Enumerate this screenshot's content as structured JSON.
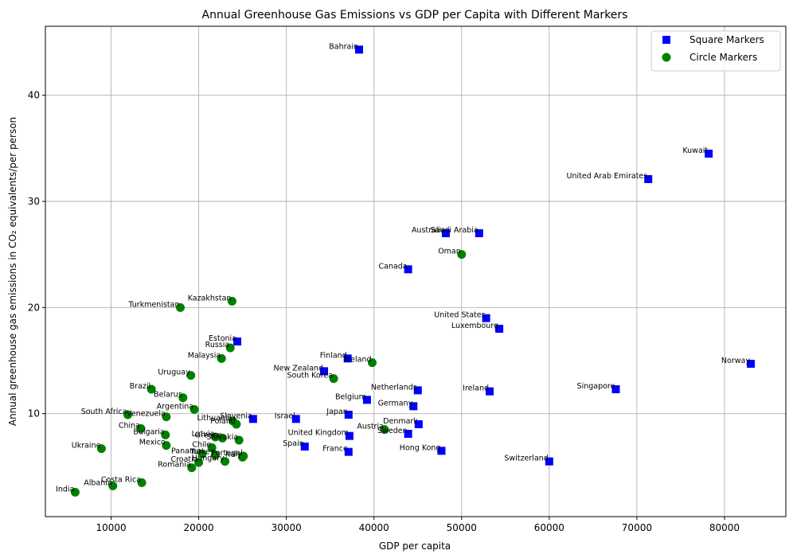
{
  "chart_data": {
    "type": "scatter",
    "title": "Annual Greenhouse Gas Emissions vs GDP per Capita with Different Markers",
    "xlabel": "GDP per capita",
    "ylabel": "Annual greenhouse gas emissions in CO₂ equivalents/per person",
    "xlim": [
      2500,
      87000
    ],
    "ylim": [
      0.3,
      46.5
    ],
    "x_ticks": [
      10000,
      20000,
      30000,
      40000,
      50000,
      60000,
      70000,
      80000
    ],
    "y_ticks": [
      10,
      20,
      30,
      40
    ],
    "grid": true,
    "legend_position": "top-right",
    "series": [
      {
        "name": "Square Markers",
        "marker": "square",
        "color": "#0000ff",
        "points": [
          {
            "label": "Bahrain",
            "x": 38300,
            "y": 44.3
          },
          {
            "label": "Kuwait",
            "x": 78200,
            "y": 34.5
          },
          {
            "label": "United Arab Emirates",
            "x": 71300,
            "y": 32.1
          },
          {
            "label": "Australia",
            "x": 48200,
            "y": 27.0
          },
          {
            "label": "Saudi Arabia",
            "x": 52000,
            "y": 27.0
          },
          {
            "label": "Canada",
            "x": 43900,
            "y": 23.6
          },
          {
            "label": "United States",
            "x": 52800,
            "y": 19.0
          },
          {
            "label": "Luxembourg",
            "x": 54300,
            "y": 18.0
          },
          {
            "label": "Estonia",
            "x": 24400,
            "y": 16.8
          },
          {
            "label": "Finland",
            "x": 37000,
            "y": 15.2
          },
          {
            "label": "Norway",
            "x": 83000,
            "y": 14.7
          },
          {
            "label": "New Zealand",
            "x": 34300,
            "y": 14.0
          },
          {
            "label": "Singapore",
            "x": 67600,
            "y": 12.3
          },
          {
            "label": "Netherlands",
            "x": 45000,
            "y": 12.2
          },
          {
            "label": "Ireland",
            "x": 53200,
            "y": 12.1
          },
          {
            "label": "Belgium",
            "x": 39200,
            "y": 11.3
          },
          {
            "label": "Germany",
            "x": 44500,
            "y": 10.7
          },
          {
            "label": "Japan",
            "x": 37100,
            "y": 9.9
          },
          {
            "label": "Slovenia",
            "x": 26200,
            "y": 9.5
          },
          {
            "label": "Israel",
            "x": 31100,
            "y": 9.5
          },
          {
            "label": "Denmark",
            "x": 45100,
            "y": 9.0
          },
          {
            "label": "Sweden",
            "x": 43900,
            "y": 8.1
          },
          {
            "label": "United Kingdom",
            "x": 37200,
            "y": 7.9
          },
          {
            "label": "Spain",
            "x": 32100,
            "y": 6.9
          },
          {
            "label": "France",
            "x": 37100,
            "y": 6.4
          },
          {
            "label": "Hong Kong",
            "x": 47700,
            "y": 6.5
          },
          {
            "label": "Switzerland",
            "x": 60000,
            "y": 5.5
          }
        ]
      },
      {
        "name": "Circle Markers",
        "marker": "circle",
        "color": "#008000",
        "points": [
          {
            "label": "Oman",
            "x": 50000,
            "y": 25.0
          },
          {
            "label": "Kazakhstan",
            "x": 23800,
            "y": 20.6
          },
          {
            "label": "Turkmenistan",
            "x": 17900,
            "y": 20.0
          },
          {
            "label": "Russia",
            "x": 23600,
            "y": 16.2
          },
          {
            "label": "Malaysia",
            "x": 22600,
            "y": 15.2
          },
          {
            "label": "Iceland",
            "x": 39800,
            "y": 14.8
          },
          {
            "label": "Uruguay",
            "x": 19100,
            "y": 13.6
          },
          {
            "label": "South Korea",
            "x": 35400,
            "y": 13.3
          },
          {
            "label": "Brazil",
            "x": 14600,
            "y": 12.3
          },
          {
            "label": "Belarus",
            "x": 18200,
            "y": 11.5
          },
          {
            "label": "Argentina",
            "x": 19500,
            "y": 10.4
          },
          {
            "label": "South Africa",
            "x": 11900,
            "y": 9.9
          },
          {
            "label": "Venezuela",
            "x": 16300,
            "y": 9.7
          },
          {
            "label": "Lithuania",
            "x": 23900,
            "y": 9.3
          },
          {
            "label": "Poland",
            "x": 24300,
            "y": 9.0
          },
          {
            "label": "China",
            "x": 13400,
            "y": 8.6
          },
          {
            "label": "Austria",
            "x": 41200,
            "y": 8.5
          },
          {
            "label": "Bulgaria",
            "x": 16200,
            "y": 8.0
          },
          {
            "label": "Latvia",
            "x": 21900,
            "y": 7.8
          },
          {
            "label": "Greece",
            "x": 22700,
            "y": 7.7
          },
          {
            "label": "Slovakia",
            "x": 24600,
            "y": 7.5
          },
          {
            "label": "Mexico",
            "x": 16300,
            "y": 7.0
          },
          {
            "label": "Ukraine",
            "x": 8900,
            "y": 6.7
          },
          {
            "label": "Chile",
            "x": 21500,
            "y": 6.8
          },
          {
            "label": "Panama",
            "x": 20400,
            "y": 6.2
          },
          {
            "label": "Turkey",
            "x": 21900,
            "y": 6.1
          },
          {
            "label": "Portugal",
            "x": 25100,
            "y": 6.0
          },
          {
            "label": "Italy",
            "x": 25000,
            "y": 5.9
          },
          {
            "label": "Hungary",
            "x": 23000,
            "y": 5.5
          },
          {
            "label": "Croatia",
            "x": 20000,
            "y": 5.4
          },
          {
            "label": "Romania",
            "x": 19200,
            "y": 4.9
          },
          {
            "label": "Costa Rica",
            "x": 13500,
            "y": 3.5
          },
          {
            "label": "Albania",
            "x": 10200,
            "y": 3.2
          },
          {
            "label": "India",
            "x": 5900,
            "y": 2.6
          }
        ]
      }
    ]
  }
}
